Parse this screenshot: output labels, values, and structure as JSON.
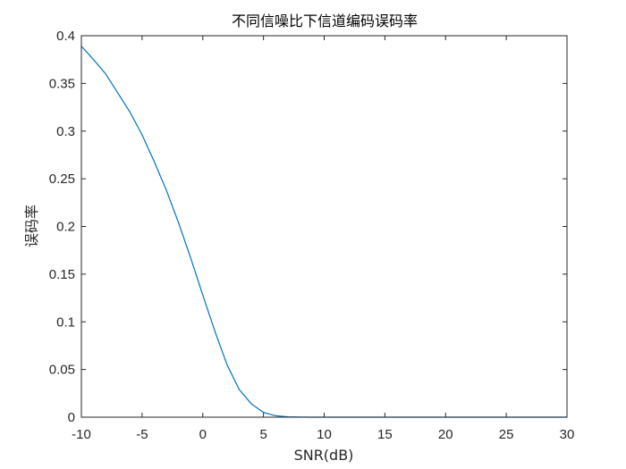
{
  "chart_data": {
    "type": "line",
    "title": "不同信噪比下信道编码误码率",
    "xlabel": "SNR(dB)",
    "ylabel": "误码率",
    "xlim": [
      -10,
      30
    ],
    "ylim": [
      0,
      0.4
    ],
    "xticks": [
      "-10",
      "-5",
      "0",
      "5",
      "10",
      "15",
      "20",
      "25",
      "30"
    ],
    "yticks": [
      "0",
      "0.05",
      "0.1",
      "0.15",
      "0.2",
      "0.25",
      "0.3",
      "0.35",
      "0.4"
    ],
    "grid": false,
    "box": true,
    "colors": {
      "line": "#0072BD",
      "axes": "#262626"
    },
    "series": [
      {
        "x": [
          -10,
          -9,
          -8,
          -7,
          -6,
          -5,
          -4,
          -3,
          -2,
          -1,
          0,
          1,
          2,
          3,
          4,
          5,
          6,
          7,
          8,
          9,
          10,
          12,
          14,
          16,
          18,
          20,
          22,
          24,
          26,
          28,
          30
        ],
        "y": [
          0.389,
          0.375,
          0.36,
          0.34,
          0.32,
          0.296,
          0.268,
          0.238,
          0.204,
          0.167,
          0.128,
          0.09,
          0.055,
          0.029,
          0.014,
          0.005,
          0.0015,
          0.0004,
          0.0001,
          0,
          0,
          0,
          0,
          0,
          0,
          0,
          0,
          0,
          0,
          0,
          0
        ]
      }
    ]
  }
}
